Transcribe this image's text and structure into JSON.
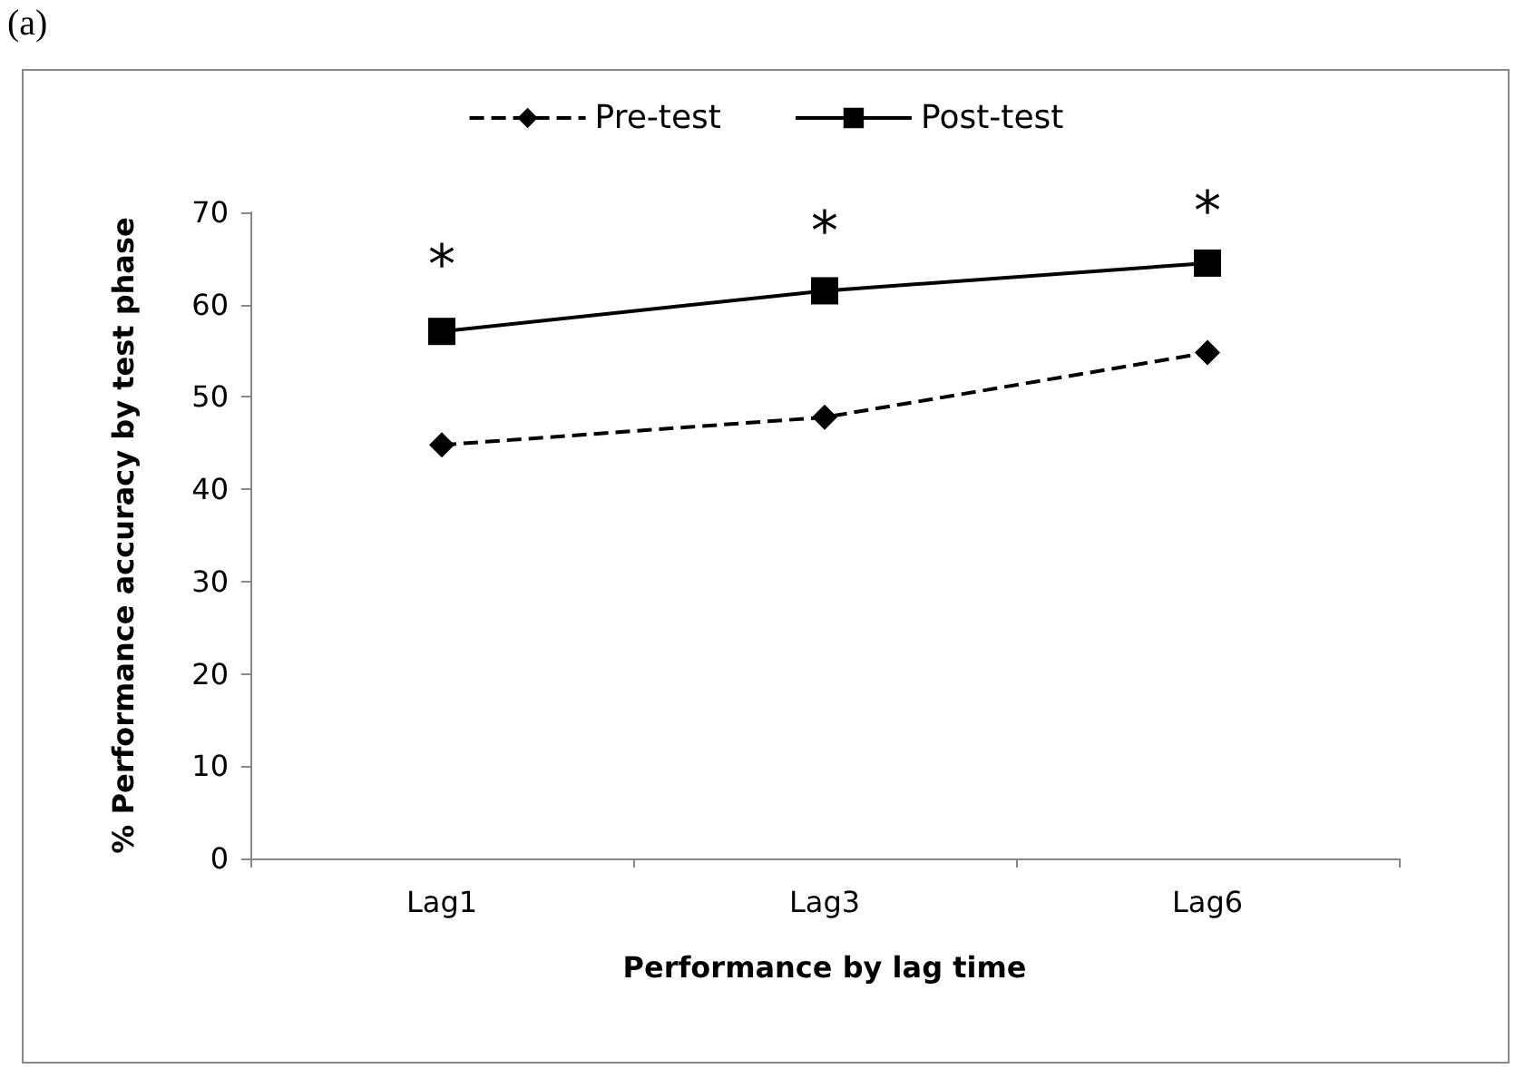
{
  "chart_data": {
    "type": "line",
    "title": "(a)",
    "xlabel": "Performance by lag time",
    "ylabel": "% Performance accuracy by test phase",
    "categories": [
      "Lag1",
      "Lag3",
      "Lag6"
    ],
    "series": [
      {
        "name": "Pre-test",
        "color": "#000000",
        "values": [
          44.8,
          47.8,
          54.8
        ],
        "marker": "diamond",
        "line_style": "dashed"
      },
      {
        "name": "Post-test",
        "color": "#000000",
        "values": [
          57.1,
          61.5,
          64.5
        ],
        "marker": "square",
        "line_style": "solid"
      }
    ],
    "ylim": [
      0,
      70
    ],
    "yticks": [
      0,
      10,
      20,
      30,
      40,
      50,
      60,
      70
    ],
    "grid": false,
    "legend": "top",
    "annotations": [
      "*",
      "*",
      "*"
    ]
  }
}
